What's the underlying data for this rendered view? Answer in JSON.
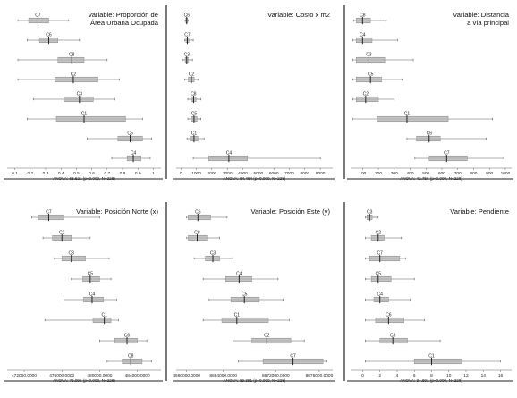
{
  "chart_data": [
    {
      "type": "box",
      "title_lines": [
        "Variable: Proporción de",
        "Área Urbana Ocupada"
      ],
      "ticks": [
        "0.1",
        "0.2",
        "0.3",
        "0.4",
        "0.5",
        "0.6",
        "0.7",
        "0.8",
        "0.9",
        "1"
      ],
      "xlim": [
        0.05,
        1.05
      ],
      "categories": [
        {
          "label": "C7",
          "min": 0.12,
          "q1": 0.19,
          "median": 0.25,
          "q3": 0.32,
          "max": 0.45
        },
        {
          "label": "C6",
          "min": 0.18,
          "q1": 0.26,
          "median": 0.32,
          "q3": 0.38,
          "max": 0.52
        },
        {
          "label": "C8",
          "min": 0.12,
          "q1": 0.38,
          "median": 0.47,
          "q3": 0.55,
          "max": 0.7
        },
        {
          "label": "C2",
          "min": 0.12,
          "q1": 0.36,
          "median": 0.48,
          "q3": 0.64,
          "max": 0.78
        },
        {
          "label": "C3",
          "min": 0.22,
          "q1": 0.42,
          "median": 0.52,
          "q3": 0.61,
          "max": 0.75
        },
        {
          "label": "C1",
          "min": 0.18,
          "q1": 0.37,
          "median": 0.55,
          "q3": 0.82,
          "max": 0.93
        },
        {
          "label": "C5",
          "min": 0.57,
          "q1": 0.77,
          "median": 0.85,
          "q3": 0.93,
          "max": 0.99
        },
        {
          "label": "C4",
          "min": 0.73,
          "q1": 0.83,
          "median": 0.87,
          "q3": 0.92,
          "max": 0.98
        }
      ],
      "anova": "ANOVA: 63.521 (p=0.000, N=228)"
    },
    {
      "type": "box",
      "title_lines": [
        "Variable: Costo x m2"
      ],
      "ticks": [
        "0",
        "1000",
        "2000",
        "3000",
        "4000",
        "5000",
        "6000",
        "7000",
        "8000",
        "9000"
      ],
      "xlim": [
        -300,
        9800
      ],
      "categories": [
        {
          "label": "C6",
          "min": 280,
          "q1": 330,
          "median": 380,
          "q3": 430,
          "max": 470
        },
        {
          "label": "C7",
          "min": 250,
          "q1": 330,
          "median": 420,
          "q3": 520,
          "max": 800
        },
        {
          "label": "C3",
          "min": 150,
          "q1": 280,
          "median": 380,
          "q3": 480,
          "max": 750
        },
        {
          "label": "C2",
          "min": 250,
          "q1": 480,
          "median": 680,
          "q3": 860,
          "max": 1100
        },
        {
          "label": "C8",
          "min": 450,
          "q1": 680,
          "median": 820,
          "q3": 980,
          "max": 1300
        },
        {
          "label": "C5",
          "min": 450,
          "q1": 680,
          "median": 850,
          "q3": 1050,
          "max": 1300
        },
        {
          "label": "C1",
          "min": 400,
          "q1": 600,
          "median": 850,
          "q3": 1100,
          "max": 1500
        },
        {
          "label": "C4",
          "min": 800,
          "q1": 1800,
          "median": 3100,
          "q3": 4300,
          "max": 9000
        }
      ],
      "anova": "ANOVA: 64.464 (p=0.000, N=228)"
    },
    {
      "type": "box",
      "title_lines": [
        "Variable: Distancia",
        "a vía principal"
      ],
      "ticks": [
        "100",
        "200",
        "300",
        "400",
        "500",
        "600",
        "700",
        "800",
        "900",
        "1000"
      ],
      "xlim": [
        25,
        1040
      ],
      "categories": [
        {
          "label": "C8",
          "min": 45,
          "q1": 60,
          "median": 100,
          "q3": 150,
          "max": 250
        },
        {
          "label": "C4",
          "min": 40,
          "q1": 60,
          "median": 100,
          "q3": 160,
          "max": 320
        },
        {
          "label": "C3",
          "min": 40,
          "q1": 60,
          "median": 140,
          "q3": 240,
          "max": 420
        },
        {
          "label": "C5",
          "min": 40,
          "q1": 60,
          "median": 150,
          "q3": 220,
          "max": 350
        },
        {
          "label": "C2",
          "min": 40,
          "q1": 60,
          "median": 120,
          "q3": 200,
          "max": 300
        },
        {
          "label": "C1",
          "min": 40,
          "q1": 190,
          "median": 380,
          "q3": 640,
          "max": 920
        },
        {
          "label": "C6",
          "min": 380,
          "q1": 440,
          "median": 520,
          "q3": 590,
          "max": 880
        },
        {
          "label": "C7",
          "min": 430,
          "q1": 520,
          "median": 630,
          "q3": 760,
          "max": 990
        }
      ],
      "anova": "ANOVA: 42.756 (p=0.000, N=228)"
    },
    {
      "type": "box",
      "title_lines": [
        "Variable: Posición Norte (x)"
      ],
      "ticks": [
        "472000.0000",
        "476000.0000",
        "480000.0000",
        "484000.0000"
      ],
      "xlim": [
        470200,
        486500
      ],
      "categories": [
        {
          "label": "C7",
          "min": 472800,
          "q1": 473500,
          "median": 474600,
          "q3": 476200,
          "max": 480000
        },
        {
          "label": "C2",
          "min": 474000,
          "q1": 475000,
          "median": 476000,
          "q3": 477000,
          "max": 479000
        },
        {
          "label": "C3",
          "min": 475200,
          "q1": 476000,
          "median": 477000,
          "q3": 478500,
          "max": 481000
        },
        {
          "label": "C5",
          "min": 477000,
          "q1": 478200,
          "median": 479000,
          "q3": 480000,
          "max": 481200
        },
        {
          "label": "C4",
          "min": 476200,
          "q1": 478300,
          "median": 479200,
          "q3": 480400,
          "max": 481800
        },
        {
          "label": "C1",
          "min": 474200,
          "q1": 479300,
          "median": 480500,
          "q3": 481200,
          "max": 482000
        },
        {
          "label": "C6",
          "min": 480000,
          "q1": 481600,
          "median": 482900,
          "q3": 484000,
          "max": 485000
        },
        {
          "label": "C8",
          "min": 480800,
          "q1": 482400,
          "median": 483300,
          "q3": 484500,
          "max": 485500
        }
      ],
      "anova": "ANOVA: 76.096 (p=0.000, N=228)"
    },
    {
      "type": "box",
      "title_lines": [
        "Variable: Posición Este (y)"
      ],
      "ticks": [
        "8660000.0000",
        "8664000.0000",
        "8672000.0000",
        "8676000.0000"
      ],
      "ticks_at": [
        8659800,
        8664700,
        8671700,
        8677500
      ],
      "xlim": [
        8658400,
        8679300
      ],
      "categories": [
        {
          "label": "C6",
          "min": 8659800,
          "q1": 8660000,
          "median": 8661300,
          "q3": 8663000,
          "max": 8665200
        },
        {
          "label": "C8",
          "min": 8659800,
          "q1": 8660000,
          "median": 8661200,
          "q3": 8662500,
          "max": 8664200
        },
        {
          "label": "C3",
          "min": 8660800,
          "q1": 8662300,
          "median": 8663300,
          "q3": 8664200,
          "max": 8666000
        },
        {
          "label": "C4",
          "min": 8662000,
          "q1": 8665000,
          "median": 8666800,
          "q3": 8668500,
          "max": 8672000
        },
        {
          "label": "C5",
          "min": 8662800,
          "q1": 8665700,
          "median": 8667500,
          "q3": 8669500,
          "max": 8672700
        },
        {
          "label": "C1",
          "min": 8662000,
          "q1": 8664500,
          "median": 8666500,
          "q3": 8670700,
          "max": 8673500
        },
        {
          "label": "C2",
          "min": 8666000,
          "q1": 8668500,
          "median": 8670500,
          "q3": 8673700,
          "max": 8675500
        },
        {
          "label": "C7",
          "min": 8666700,
          "q1": 8670000,
          "median": 8674000,
          "q3": 8678000,
          "max": 8678500
        }
      ],
      "anova": "ANOVA: 89.391 (p=0.000, N=228)"
    },
    {
      "type": "box",
      "title_lines": [
        "Variable: Pendiente"
      ],
      "ticks": [
        "0",
        "2",
        "4",
        "6",
        "8",
        "10",
        "12",
        "14",
        "16"
      ],
      "xlim": [
        -1.4,
        17.3
      ],
      "categories": [
        {
          "label": "C3",
          "min": 0.3,
          "q1": 0.5,
          "median": 0.8,
          "q3": 1.1,
          "max": 1.8
        },
        {
          "label": "C2",
          "min": 0.3,
          "q1": 1.0,
          "median": 1.8,
          "q3": 2.5,
          "max": 4.5
        },
        {
          "label": "C7",
          "min": 0.3,
          "q1": 0.8,
          "median": 2.0,
          "q3": 4.3,
          "max": 5.0
        },
        {
          "label": "C5",
          "min": 0.3,
          "q1": 1.0,
          "median": 1.8,
          "q3": 3.3,
          "max": 6.0
        },
        {
          "label": "C4",
          "min": 0.3,
          "q1": 1.3,
          "median": 2.0,
          "q3": 3.0,
          "max": 5.5
        },
        {
          "label": "C6",
          "min": 0.3,
          "q1": 1.5,
          "median": 3.0,
          "q3": 4.8,
          "max": 7.2
        },
        {
          "label": "C8",
          "min": 0.3,
          "q1": 2.0,
          "median": 3.5,
          "q3": 5.2,
          "max": 9.0
        },
        {
          "label": "C1",
          "min": 0.3,
          "q1": 6.0,
          "median": 8.0,
          "q3": 11.5,
          "max": 16.0
        }
      ],
      "anova": "ANOVA: 34.691 (p=0.000, N=228)"
    }
  ],
  "colors": {
    "box_fill": "#b8b8b8",
    "box_edge": "#8c8c8c",
    "whisker": "#5a5a5a",
    "median": "#111111",
    "frame": "#222222",
    "axis": "#666666"
  }
}
